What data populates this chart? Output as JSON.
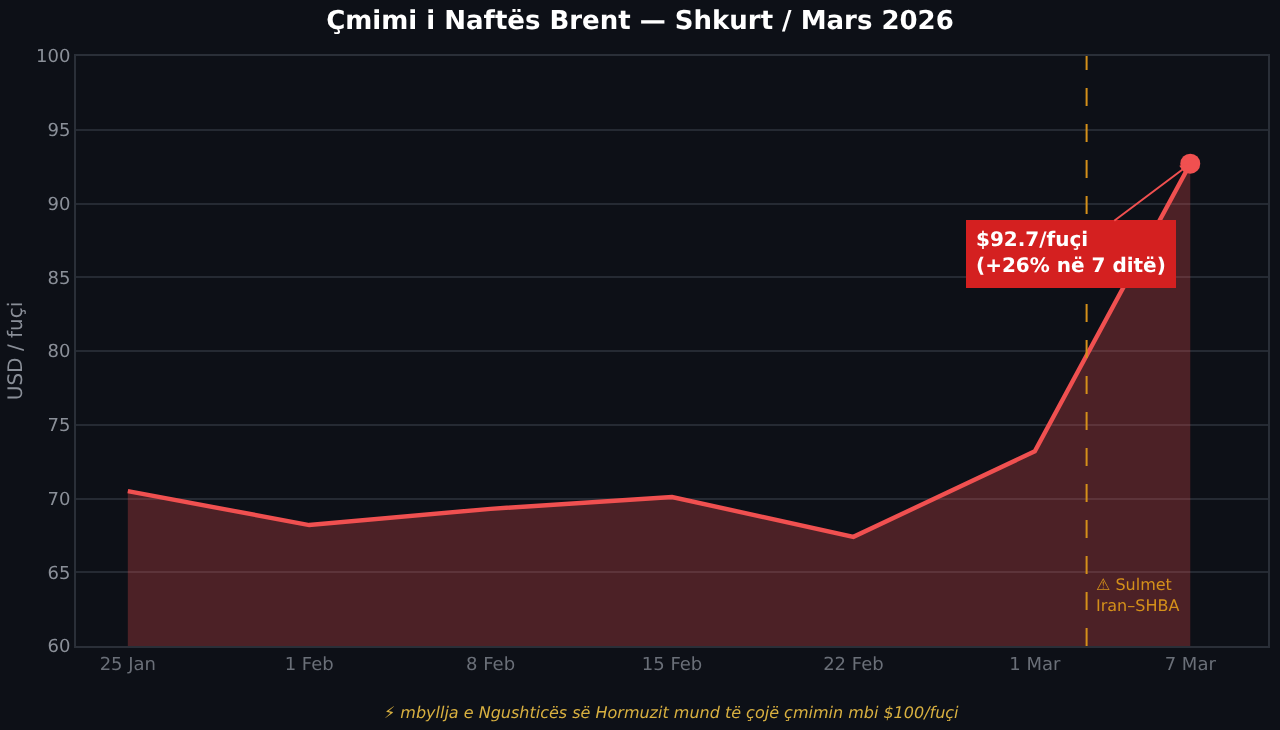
{
  "chart_data": {
    "type": "area",
    "title": "Çmimi i Naftës Brent — Shkurt / Mars 2026",
    "ylabel": "USD / fuçi",
    "x": [
      "2026-01-25",
      "2026-02-01",
      "2026-02-08",
      "2026-02-15",
      "2026-02-22",
      "2026-03-01",
      "2026-03-07"
    ],
    "series": [
      {
        "color": "#f05050",
        "values": [
          70.5,
          68.2,
          69.3,
          70.1,
          67.4,
          73.2,
          92.7
        ]
      }
    ],
    "xlim": [
      "2026-01-23",
      "2026-03-10"
    ],
    "xticks": [
      {
        "value": "2026-01-25",
        "label": "25 Jan"
      },
      {
        "value": "2026-02-01",
        "label": "1 Feb"
      },
      {
        "value": "2026-02-08",
        "label": "8 Feb"
      },
      {
        "value": "2026-02-15",
        "label": "15 Feb"
      },
      {
        "value": "2026-02-22",
        "label": "22 Feb"
      },
      {
        "value": "2026-03-01",
        "label": "1 Mar"
      },
      {
        "value": "2026-03-07",
        "label": "7 Mar"
      }
    ],
    "ylim": [
      60,
      100
    ],
    "yticks": [
      60,
      65,
      70,
      75,
      80,
      85,
      90,
      95,
      100
    ],
    "grid": "y",
    "legend": false,
    "marker": "none",
    "line_style": "solid",
    "ref_lines": [
      {
        "axis": "x",
        "value": "2026-03-03",
        "label": "⚠ Sulmet\nIran–SHBA",
        "color": "#d4901a",
        "line_style": "dashed"
      }
    ],
    "annotations": [
      {
        "text": "$92.7/fuçi\n(+26% në 7 ditë)",
        "x": "2026-03-07",
        "y": 92.7
      },
      "⚡ mbyllja e Ngushticës së Hormuzit mund të çojë çmimin mbi $100/fuçi"
    ]
  }
}
